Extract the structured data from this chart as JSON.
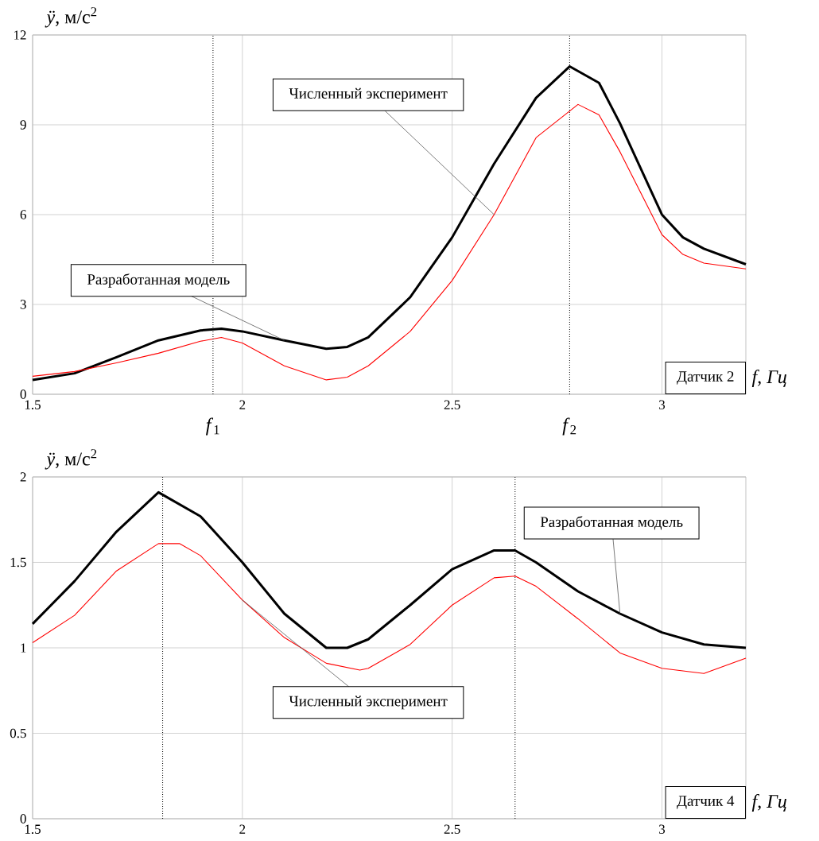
{
  "chart_data": [
    {
      "type": "line",
      "xlabel": "*f, Гц*",
      "ylabel": "*ÿ*, м/с$^{2}$",
      "xlim": [
        1.5,
        3.2
      ],
      "ylim": [
        0,
        12
      ],
      "xticks": [
        1.5,
        2,
        2.5,
        3
      ],
      "yticks": [
        0,
        3,
        6,
        9,
        12
      ],
      "grid": true,
      "marker": "none",
      "line_style": "solid",
      "series": [
        {
          "name": "Разработанная модель",
          "color": "#000000",
          "x": [
            1.5,
            1.6,
            1.7,
            1.8,
            1.9,
            1.95,
            2.0,
            2.1,
            2.2,
            2.25,
            2.3,
            2.4,
            2.5,
            2.6,
            2.7,
            2.78,
            2.85,
            2.9,
            3.0,
            3.05,
            3.1,
            3.2
          ],
          "values": [
            0.48,
            0.7,
            1.24,
            1.8,
            2.13,
            2.19,
            2.1,
            1.8,
            1.52,
            1.58,
            1.9,
            3.24,
            5.24,
            7.7,
            9.9,
            10.95,
            10.4,
            9.05,
            6.0,
            5.24,
            4.86,
            4.34
          ]
        },
        {
          "name": "Численный эксперимент",
          "color": "#ff0000",
          "x": [
            1.5,
            1.6,
            1.7,
            1.8,
            1.9,
            1.95,
            2.0,
            2.1,
            2.2,
            2.25,
            2.3,
            2.4,
            2.5,
            2.6,
            2.7,
            2.8,
            2.85,
            2.9,
            3.0,
            3.05,
            3.1,
            3.2
          ],
          "values": [
            0.6,
            0.76,
            1.05,
            1.37,
            1.77,
            1.9,
            1.71,
            0.95,
            0.48,
            0.57,
            0.95,
            2.1,
            3.8,
            6.0,
            8.57,
            9.68,
            9.33,
            8.1,
            5.33,
            4.67,
            4.38,
            4.19
          ]
        }
      ],
      "ref_lines": [
        {
          "axis": "x",
          "value": 1.93,
          "label": "*f*$_{1}$",
          "color": "#000000",
          "line_style": "dotted"
        },
        {
          "axis": "x",
          "value": 2.78,
          "label": "*f*$_{2}$",
          "color": "#000000",
          "line_style": "dotted"
        }
      ],
      "annotations": [
        "Датчик 2"
      ]
    },
    {
      "type": "line",
      "xlabel": "*f, Гц*",
      "ylabel": "*ÿ*, м/с$^{2}$",
      "xlim": [
        1.5,
        3.2
      ],
      "ylim": [
        0,
        2
      ],
      "xticks": [
        1.5,
        2,
        2.5,
        3
      ],
      "yticks": [
        0,
        0.5,
        1,
        1.5,
        2
      ],
      "grid": true,
      "marker": "none",
      "line_style": "solid",
      "series": [
        {
          "name": "Разработанная модель",
          "color": "#000000",
          "x": [
            1.5,
            1.6,
            1.7,
            1.8,
            1.9,
            2.0,
            2.1,
            2.2,
            2.25,
            2.3,
            2.4,
            2.5,
            2.6,
            2.65,
            2.7,
            2.8,
            2.9,
            3.0,
            3.1,
            3.2
          ],
          "values": [
            1.14,
            1.39,
            1.68,
            1.91,
            1.77,
            1.5,
            1.2,
            1.0,
            1.0,
            1.05,
            1.25,
            1.46,
            1.57,
            1.57,
            1.5,
            1.33,
            1.2,
            1.09,
            1.02,
            1.0
          ]
        },
        {
          "name": "Численный эксперимент",
          "color": "#ff0000",
          "x": [
            1.5,
            1.6,
            1.7,
            1.8,
            1.85,
            1.9,
            2.0,
            2.1,
            2.2,
            2.28,
            2.3,
            2.4,
            2.5,
            2.6,
            2.65,
            2.7,
            2.8,
            2.9,
            3.0,
            3.1,
            3.2
          ],
          "values": [
            1.03,
            1.19,
            1.45,
            1.61,
            1.61,
            1.54,
            1.28,
            1.06,
            0.91,
            0.87,
            0.88,
            1.02,
            1.25,
            1.41,
            1.42,
            1.36,
            1.17,
            0.97,
            0.88,
            0.85,
            0.94
          ]
        }
      ],
      "ref_lines": [
        {
          "axis": "x",
          "value": 1.81,
          "color": "#000000",
          "line_style": "dotted"
        },
        {
          "axis": "x",
          "value": 2.65,
          "color": "#000000",
          "line_style": "dotted"
        }
      ],
      "annotations": [
        "Датчик 4"
      ]
    }
  ]
}
